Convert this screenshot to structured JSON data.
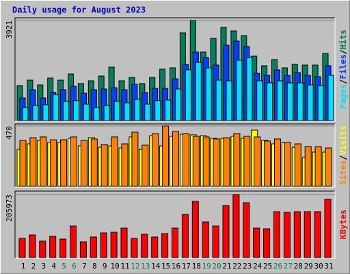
{
  "chart_data": [
    {
      "type": "bar",
      "title": "Daily usage for August 2023",
      "ylim": [
        0,
        3921
      ],
      "yticks": [
        3921
      ],
      "legend_separator": "/",
      "series": [
        {
          "name": "Pages",
          "color": "#00e0ff",
          "values": [
            510,
            591,
            618,
            1021,
            752,
            779,
            645,
            510,
            591,
            752,
            698,
            833,
            645,
            779,
            806,
            1235,
            1988,
            2283,
            2068,
            1585,
            1558,
            2364,
            2471,
            1558,
            1477,
            1558,
            1477,
            1477,
            1397,
            1370,
            1773
          ]
        },
        {
          "name": "Files",
          "color": "#0040ff",
          "values": [
            886,
            1208,
            886,
            1101,
            1208,
            1343,
            1074,
            1208,
            1235,
            1289,
            1208,
            1424,
            1101,
            1262,
            1262,
            1638,
            2202,
            2686,
            2471,
            2176,
            2954,
            3116,
            2901,
            1853,
            1773,
            1988,
            1773,
            1880,
            1773,
            1719,
            2149
          ]
        },
        {
          "name": "Hits",
          "color": "#00805c",
          "values": [
            1370,
            1585,
            1397,
            1665,
            1585,
            1826,
            1450,
            1558,
            1746,
            2095,
            1558,
            1692,
            1450,
            1692,
            2014,
            2068,
            3438,
            3921,
            2686,
            3223,
            3653,
            3518,
            3330,
            2525,
            2149,
            2390,
            2068,
            2202,
            2176,
            2176,
            2632
          ]
        }
      ]
    },
    {
      "type": "bar",
      "ylim": [
        0,
        470
      ],
      "yticks": [
        470
      ],
      "legend_separator": "/",
      "series": [
        {
          "name": "Sites",
          "color": "#ff8000",
          "values": [
            358,
            379,
            385,
            363,
            363,
            385,
            358,
            369,
            326,
            385,
            331,
            422,
            321,
            411,
            470,
            427,
            411,
            390,
            385,
            369,
            379,
            411,
            390,
            385,
            353,
            369,
            342,
            331,
            310,
            310,
            299
          ]
        },
        {
          "name": "Visits",
          "color": "#ffff00",
          "values": [
            288,
            331,
            358,
            342,
            342,
            374,
            315,
            379,
            304,
            315,
            299,
            385,
            288,
            395,
            315,
            390,
            406,
            401,
            395,
            374,
            374,
            390,
            374,
            438,
            358,
            331,
            342,
            304,
            224,
            267,
            267
          ]
        }
      ]
    },
    {
      "type": "bar",
      "ylim": [
        0,
        205973
      ],
      "yticks": [
        205973
      ],
      "categories": [
        "1",
        "2",
        "3",
        "4",
        "5",
        "6",
        "7",
        "8",
        "9",
        "10",
        "11",
        "12",
        "13",
        "14",
        "15",
        "16",
        "17",
        "18",
        "19",
        "20",
        "21",
        "22",
        "23",
        "24",
        "25",
        "26",
        "27",
        "28",
        "29",
        "30",
        "31"
      ],
      "category_colors": [
        "#000000",
        "#000000",
        "#000000",
        "#000000",
        "#008040",
        "#008040",
        "#000000",
        "#000000",
        "#000000",
        "#000000",
        "#000000",
        "#008040",
        "#008040",
        "#000000",
        "#000000",
        "#000000",
        "#000000",
        "#000000",
        "#008040",
        "#008040",
        "#000000",
        "#000000",
        "#000000",
        "#000000",
        "#000000",
        "#008040",
        "#008040",
        "#000000",
        "#000000",
        "#000000",
        "#000000"
      ],
      "series": [
        {
          "name": "KBytes",
          "color": "#ff0000",
          "values": [
            62690,
            73880,
            53730,
            69400,
            60450,
            103000,
            51500,
            67170,
            80600,
            82840,
            96280,
            62690,
            76130,
            67170,
            78360,
            96280,
            141060,
            183600,
            116430,
            103000,
            170170,
            205973,
            179120,
            96280,
            94040,
            150010,
            147770,
            150010,
            150010,
            150010,
            190320
          ]
        }
      ]
    }
  ]
}
